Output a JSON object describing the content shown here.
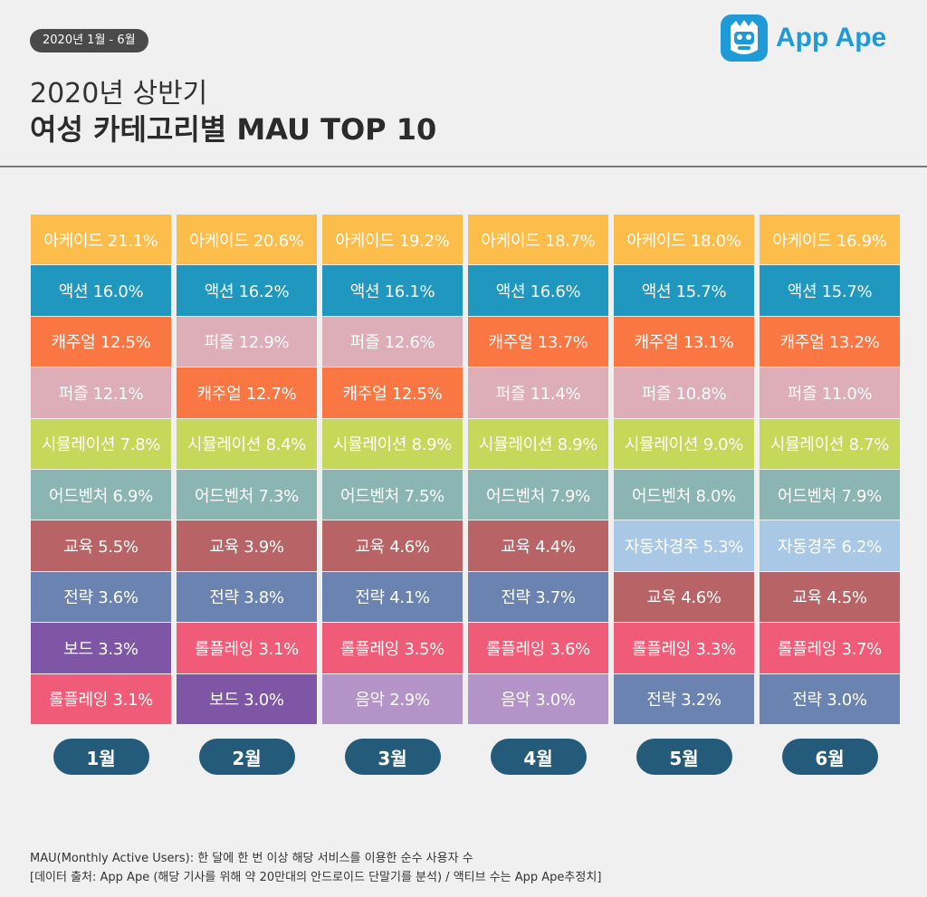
{
  "header": {
    "period": "2020년 1월 - 6월",
    "title_line1": "2020년 상반기",
    "title_line2": "여성 카테고리별 MAU TOP 10",
    "logo_text": "App Ape"
  },
  "colors": {
    "아케이드": "#fdbd4b",
    "액션": "#1f97be",
    "캐주얼": "#fa7642",
    "퍼즐": "#ddadb8",
    "시뮬레이션": "#c6d85a",
    "어드벤처": "#8ab5b2",
    "교육": "#b86466",
    "전략": "#6b83b0",
    "보드": "#7f56a5",
    "롤플레잉": "#f05c78",
    "음악": "#b493c8",
    "자동차경주": "#a9c8e6",
    "자동경주": "#a9c8e6",
    "month_pill": "#245a7a"
  },
  "chart_data": {
    "type": "table",
    "title": "여성 카테고리별 MAU TOP 10",
    "months": [
      {
        "label": "1월",
        "items": [
          {
            "category": "아케이드",
            "value": 21.1,
            "text": "아케이드 21.1%"
          },
          {
            "category": "액션",
            "value": 16.0,
            "text": "액션 16.0%"
          },
          {
            "category": "캐주얼",
            "value": 12.5,
            "text": "캐주얼 12.5%"
          },
          {
            "category": "퍼즐",
            "value": 12.1,
            "text": "퍼즐 12.1%"
          },
          {
            "category": "시뮬레이션",
            "value": 7.8,
            "text": "시뮬레이션 7.8%"
          },
          {
            "category": "어드벤처",
            "value": 6.9,
            "text": "어드벤처 6.9%"
          },
          {
            "category": "교육",
            "value": 5.5,
            "text": "교육 5.5%"
          },
          {
            "category": "전략",
            "value": 3.6,
            "text": "전략 3.6%"
          },
          {
            "category": "보드",
            "value": 3.3,
            "text": "보드 3.3%"
          },
          {
            "category": "롤플레잉",
            "value": 3.1,
            "text": "롤플레잉 3.1%"
          }
        ]
      },
      {
        "label": "2월",
        "items": [
          {
            "category": "아케이드",
            "value": 20.6,
            "text": "아케이드 20.6%"
          },
          {
            "category": "액션",
            "value": 16.2,
            "text": "액션 16.2%"
          },
          {
            "category": "퍼즐",
            "value": 12.9,
            "text": "퍼즐 12.9%"
          },
          {
            "category": "캐주얼",
            "value": 12.7,
            "text": "캐주얼 12.7%"
          },
          {
            "category": "시뮬레이션",
            "value": 8.4,
            "text": "시뮬레이션 8.4%"
          },
          {
            "category": "어드벤처",
            "value": 7.3,
            "text": "어드벤처 7.3%"
          },
          {
            "category": "교육",
            "value": 3.9,
            "text": "교육 3.9%"
          },
          {
            "category": "전략",
            "value": 3.8,
            "text": "전략 3.8%"
          },
          {
            "category": "롤플레잉",
            "value": 3.1,
            "text": "롤플레잉 3.1%"
          },
          {
            "category": "보드",
            "value": 3.0,
            "text": "보드 3.0%"
          }
        ]
      },
      {
        "label": "3월",
        "items": [
          {
            "category": "아케이드",
            "value": 19.2,
            "text": "아케이드 19.2%"
          },
          {
            "category": "액션",
            "value": 16.1,
            "text": "액션 16.1%"
          },
          {
            "category": "퍼즐",
            "value": 12.6,
            "text": "퍼즐 12.6%"
          },
          {
            "category": "캐주얼",
            "value": 12.5,
            "text": "캐주얼 12.5%"
          },
          {
            "category": "시뮬레이션",
            "value": 8.9,
            "text": "시뮬레이션 8.9%"
          },
          {
            "category": "어드벤처",
            "value": 7.5,
            "text": "어드벤처 7.5%"
          },
          {
            "category": "교육",
            "value": 4.6,
            "text": "교육 4.6%"
          },
          {
            "category": "전략",
            "value": 4.1,
            "text": "전략 4.1%"
          },
          {
            "category": "롤플레잉",
            "value": 3.5,
            "text": "롤플레잉 3.5%"
          },
          {
            "category": "음악",
            "value": 2.9,
            "text": "음악 2.9%"
          }
        ]
      },
      {
        "label": "4월",
        "items": [
          {
            "category": "아케이드",
            "value": 18.7,
            "text": "아케이드 18.7%"
          },
          {
            "category": "액션",
            "value": 16.6,
            "text": "액션 16.6%"
          },
          {
            "category": "캐주얼",
            "value": 13.7,
            "text": "캐주얼 13.7%"
          },
          {
            "category": "퍼즐",
            "value": 11.4,
            "text": "퍼즐 11.4%"
          },
          {
            "category": "시뮬레이션",
            "value": 8.9,
            "text": "시뮬레이션 8.9%"
          },
          {
            "category": "어드벤처",
            "value": 7.9,
            "text": "어드벤처 7.9%"
          },
          {
            "category": "교육",
            "value": 4.4,
            "text": "교육 4.4%"
          },
          {
            "category": "전략",
            "value": 3.7,
            "text": "전략 3.7%"
          },
          {
            "category": "롤플레잉",
            "value": 3.6,
            "text": "롤플레잉 3.6%"
          },
          {
            "category": "음악",
            "value": 3.0,
            "text": "음악 3.0%"
          }
        ]
      },
      {
        "label": "5월",
        "items": [
          {
            "category": "아케이드",
            "value": 18.0,
            "text": "아케이드 18.0%"
          },
          {
            "category": "액션",
            "value": 15.7,
            "text": "액션 15.7%"
          },
          {
            "category": "캐주얼",
            "value": 13.1,
            "text": "캐주얼 13.1%"
          },
          {
            "category": "퍼즐",
            "value": 10.8,
            "text": "퍼즐 10.8%"
          },
          {
            "category": "시뮬레이션",
            "value": 9.0,
            "text": "시뮬레이션 9.0%"
          },
          {
            "category": "어드벤처",
            "value": 8.0,
            "text": "어드벤처 8.0%"
          },
          {
            "category": "자동차경주",
            "value": 5.3,
            "text": "자동차경주 5.3%"
          },
          {
            "category": "교육",
            "value": 4.6,
            "text": "교육 4.6%"
          },
          {
            "category": "롤플레잉",
            "value": 3.3,
            "text": "롤플레잉 3.3%"
          },
          {
            "category": "전략",
            "value": 3.2,
            "text": "전략 3.2%"
          }
        ]
      },
      {
        "label": "6월",
        "items": [
          {
            "category": "아케이드",
            "value": 16.9,
            "text": "아케이드 16.9%"
          },
          {
            "category": "액션",
            "value": 15.7,
            "text": "액션 15.7%"
          },
          {
            "category": "캐주얼",
            "value": 13.2,
            "text": "캐주얼 13.2%"
          },
          {
            "category": "퍼즐",
            "value": 11.0,
            "text": "퍼즐 11.0%"
          },
          {
            "category": "시뮬레이션",
            "value": 8.7,
            "text": "시뮬레이션 8.7%"
          },
          {
            "category": "어드벤처",
            "value": 7.9,
            "text": "어드벤처 7.9%"
          },
          {
            "category": "자동경주",
            "value": 6.2,
            "text": "자동경주 6.2%"
          },
          {
            "category": "교육",
            "value": 4.5,
            "text": "교육 4.5%"
          },
          {
            "category": "롤플레잉",
            "value": 3.7,
            "text": "롤플레잉 3.7%"
          },
          {
            "category": "전략",
            "value": 3.0,
            "text": "전략 3.0%"
          }
        ]
      }
    ]
  },
  "footer": {
    "line1": "MAU(Monthly Active Users):  한 달에 한 번 이상 해당 서비스를 이용한 순수 사용자 수",
    "line2": "[데이터 출처: App Ape (해당 기사를 위해 약 20만대의 안드로이드 단말기를 분석) / 액티브 수는 App Ape추정치]"
  }
}
